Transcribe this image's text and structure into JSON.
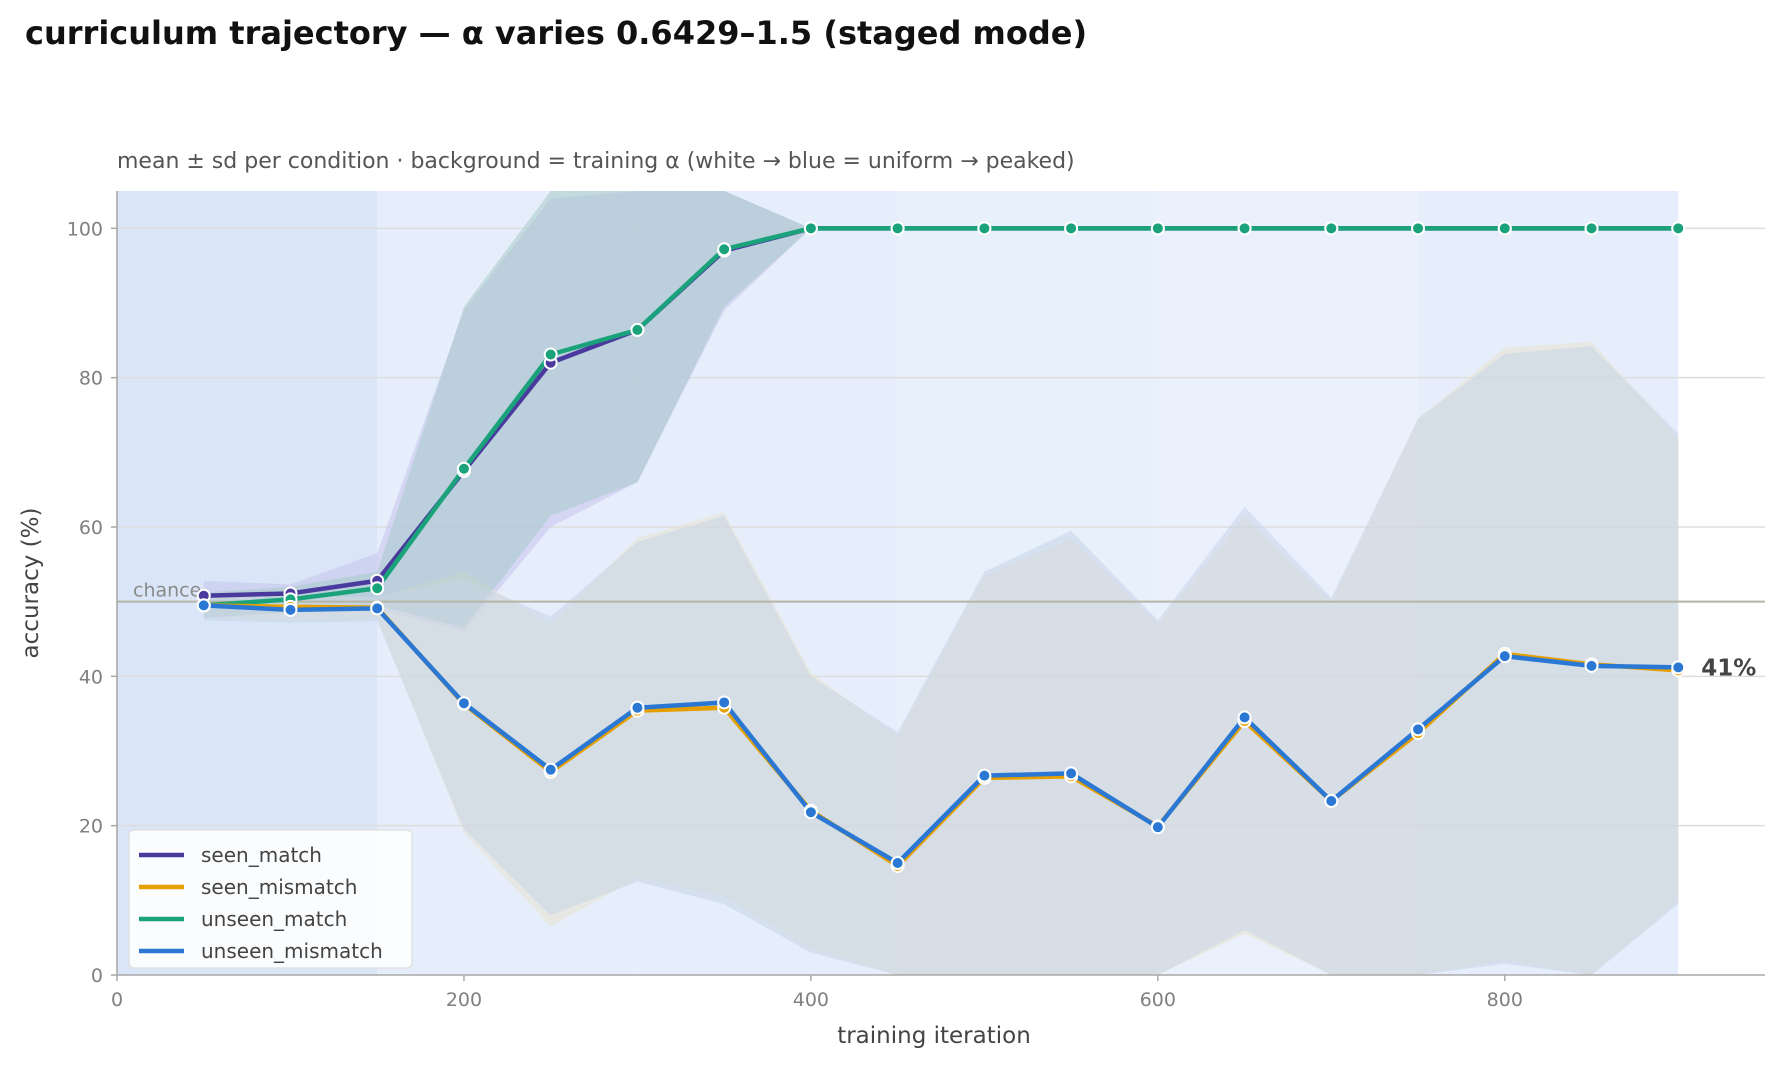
{
  "title": "curriculum trajectory — α varies 0.6429–1.5 (staged mode)",
  "chart_data": {
    "type": "line",
    "subtitle": "mean ± sd per condition · background = training α (white → blue = uniform → peaked)",
    "xlabel": "training iteration",
    "ylabel": "accuracy (%)",
    "xlim": [
      0,
      950
    ],
    "ylim": [
      0,
      105
    ],
    "xticks": [
      0,
      200,
      400,
      600,
      800
    ],
    "yticks": [
      0,
      20,
      40,
      60,
      80,
      100
    ],
    "grid": "horizontal",
    "legend_position": "lower-left",
    "chance_level": 50,
    "chance_label": "chance",
    "end_annotation": "41%",
    "x": [
      50,
      100,
      150,
      200,
      250,
      300,
      350,
      400,
      450,
      500,
      550,
      600,
      650,
      700,
      750,
      800,
      850,
      900
    ],
    "alpha_bands": [
      {
        "x_start": 0,
        "x_end": 150,
        "level": 0.95
      },
      {
        "x_start": 150,
        "x_end": 300,
        "level": 0.6
      },
      {
        "x_start": 300,
        "x_end": 450,
        "level": 0.6
      },
      {
        "x_start": 450,
        "x_end": 600,
        "level": 0.55
      },
      {
        "x_start": 600,
        "x_end": 750,
        "level": 0.45
      },
      {
        "x_start": 750,
        "x_end": 900,
        "level": 0.6
      }
    ],
    "series": [
      {
        "name": "seen_match",
        "color": "#4a3a9e",
        "values": [
          50.8,
          51.1,
          52.8,
          67.5,
          82.0,
          86.4,
          97.0,
          100,
          100,
          100,
          100,
          100,
          100,
          100,
          100,
          100,
          100,
          100
        ],
        "upper": [
          52.8,
          52.3,
          56.5,
          89.0,
          104.0,
          105.0,
          105.0,
          100,
          100,
          100,
          100,
          100,
          100,
          100,
          100,
          100,
          100,
          100
        ],
        "lower": [
          48.8,
          49.5,
          49.0,
          46.0,
          60.0,
          66.0,
          89.0,
          100,
          100,
          100,
          100,
          100,
          100,
          100,
          100,
          100,
          100,
          100
        ]
      },
      {
        "name": "seen_mismatch",
        "color": "#e69f00",
        "values": [
          49.5,
          49.3,
          49.2,
          36.3,
          27.2,
          35.4,
          35.8,
          22.0,
          14.6,
          26.4,
          26.6,
          19.9,
          34.0,
          23.3,
          32.4,
          43.0,
          41.6,
          40.8
        ],
        "upper": [
          51.0,
          51.0,
          50.5,
          54.0,
          47.0,
          58.5,
          62.0,
          40.5,
          32.0,
          53.5,
          58.5,
          47.0,
          61.5,
          50.0,
          74.5,
          84.0,
          84.8,
          72.0
        ],
        "lower": [
          48.0,
          47.6,
          47.8,
          19.0,
          6.5,
          13.0,
          10.5,
          3.5,
          0,
          0,
          0,
          0,
          5.5,
          0,
          0,
          2.0,
          0,
          10.0
        ]
      },
      {
        "name": "unseen_match",
        "color": "#1aa37a",
        "values": [
          49.5,
          50.3,
          51.8,
          67.8,
          83.1,
          86.4,
          97.2,
          100,
          100,
          100,
          100,
          100,
          100,
          100,
          100,
          100,
          100,
          100
        ],
        "upper": [
          51.2,
          52.0,
          54.0,
          89.5,
          105.0,
          105.0,
          105.0,
          100,
          100,
          100,
          100,
          100,
          100,
          100,
          100,
          100,
          100,
          100
        ],
        "lower": [
          47.8,
          48.6,
          49.5,
          46.5,
          61.5,
          66.0,
          89.5,
          100,
          100,
          100,
          100,
          100,
          100,
          100,
          100,
          100,
          100,
          100
        ]
      },
      {
        "name": "unseen_mismatch",
        "color": "#2a78d4",
        "values": [
          49.5,
          48.9,
          49.1,
          36.4,
          27.5,
          35.8,
          36.5,
          21.8,
          15.0,
          26.7,
          27.0,
          19.8,
          34.5,
          23.3,
          32.9,
          42.7,
          41.4,
          41.2
        ],
        "upper": [
          51.0,
          50.5,
          50.8,
          53.0,
          48.0,
          58.0,
          61.5,
          40.0,
          32.5,
          54.0,
          59.5,
          47.5,
          62.7,
          50.5,
          74.5,
          83.2,
          84.2,
          72.5
        ],
        "lower": [
          47.5,
          47.2,
          47.4,
          19.5,
          8.0,
          12.5,
          9.5,
          3.0,
          0,
          0,
          0,
          0,
          6.0,
          0,
          0,
          1.5,
          0,
          9.5
        ]
      }
    ]
  }
}
